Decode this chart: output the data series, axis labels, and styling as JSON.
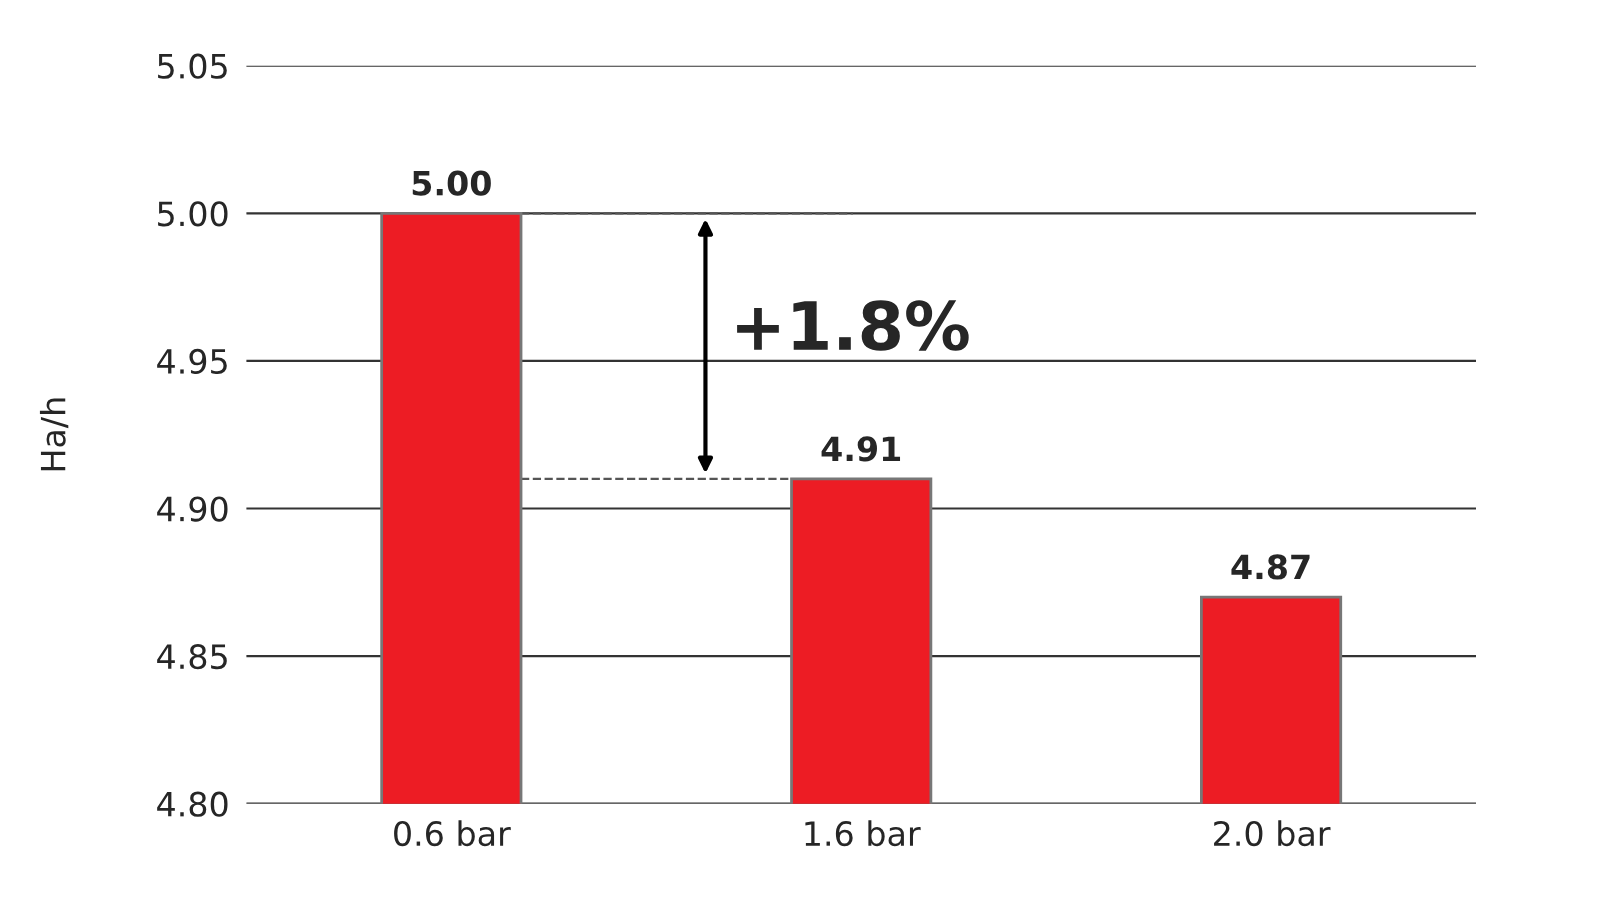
{
  "chart_data": {
    "type": "bar",
    "ylabel": "Ha/h",
    "categories": [
      "0.6 bar",
      "1.6 bar",
      "2.0 bar"
    ],
    "values": [
      5.0,
      4.91,
      4.87
    ],
    "color": "#ed1c24",
    "ylim": [
      4.8,
      5.05
    ],
    "yticks": [
      {
        "value": 4.8,
        "label": "4.80"
      },
      {
        "value": 4.85,
        "label": "4.85"
      },
      {
        "value": 4.9,
        "label": "4.90"
      },
      {
        "value": 4.95,
        "label": "4.95"
      },
      {
        "value": 5.0,
        "label": "5.00"
      },
      {
        "value": 5.05,
        "label": "5.05"
      }
    ],
    "grid": "y",
    "value_labels": [
      "5.00",
      "4.91",
      "4.87"
    ],
    "ref_lines": [
      {
        "axis": "y",
        "value": 5.0,
        "color": "#555555",
        "line_style": "dashed"
      },
      {
        "axis": "y",
        "value": 4.91,
        "color": "#555555",
        "line_style": "dashed"
      }
    ],
    "annotations": [
      "+1.8%"
    ]
  }
}
